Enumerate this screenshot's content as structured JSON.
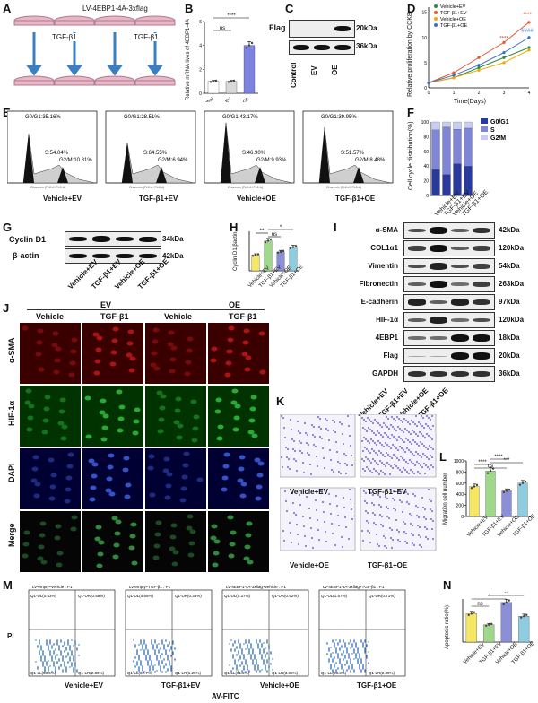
{
  "panelA": {
    "letter": "A",
    "title": "LV-4EBP1-4A-3xflag",
    "treat_left": "TGF-β1",
    "treat_right": "TGF-β1"
  },
  "panelB": {
    "letter": "B",
    "ylabel": "Relative mRNA lives of 4EBP1-4A",
    "ns": "ns",
    "sig": "****",
    "ticks": [
      "0",
      "2",
      "4",
      "6"
    ]
  },
  "panelC": {
    "letter": "C",
    "row_label": "Flag",
    "kda": [
      "20kDa",
      "36kDa"
    ],
    "lanes": [
      "Control",
      "EV",
      "OE"
    ]
  },
  "panelD": {
    "letter": "D",
    "ylabel": "Relative proliferation by CCK8",
    "xlabel": "Time(Days)",
    "sig": [
      "****",
      "****",
      "####"
    ]
  },
  "panelE": {
    "letter": "E",
    "xaxis": "Channels (FL2-A+FL2-A)",
    "plots": [
      {
        "g0": "G0/G1:35.16%",
        "s": "S:54.04%",
        "g2": "G2/M:10.81%",
        "label": "Vehicle+EV"
      },
      {
        "g0": "G0/G1:28.51%",
        "s": "S:64.55%",
        "g2": "G2/M:6.94%",
        "label": "TGF-β1+EV"
      },
      {
        "g0": "G0/G1:43.17%",
        "s": "S:46.90%",
        "g2": "G2/M:9.93%",
        "label": "Vehicle+OE"
      },
      {
        "g0": "G0/G1:39.95%",
        "s": "S:51.57%",
        "g2": "G2/M:8.48%",
        "label": "TGF-β1+OE"
      }
    ]
  },
  "panelF": {
    "letter": "F",
    "ylabel": "Cell cycle distribution(%)",
    "legend": [
      "G0/G1",
      "S",
      "G2/M"
    ],
    "ticks": [
      "0",
      "20",
      "40",
      "60",
      "80",
      "100"
    ],
    "lanes": [
      "Vehicle+EV",
      "TGF-β1+EV",
      "Vehicle+OE",
      "TGF-β1+OE"
    ],
    "colors": {
      "g0": "#2a3a9c",
      "s": "#7f86d6",
      "g2": "#c9cdf0"
    }
  },
  "panelG": {
    "letter": "G",
    "rows": [
      "Cyclin D1",
      "β-actin"
    ],
    "kda": [
      "34kDa",
      "42kDa"
    ],
    "lanes": [
      "Vehicle+EV",
      "TGF-β1+EV",
      "Vehicle+OE",
      "TGF-β1+OE"
    ]
  },
  "panelH": {
    "letter": "H",
    "ylabel": "Cyclin D1/βactin",
    "sig": [
      "**",
      "ns",
      "*"
    ],
    "lanes": [
      "Vehicle+EV",
      "TGF-β1+EV",
      "Vehicle+OE",
      "TGF-β1+OE"
    ]
  },
  "panelI": {
    "letter": "I",
    "rows": [
      "α-SMA",
      "COL1α1",
      "Vimentin",
      "Fibronectin",
      "E-cadherin",
      "HIF-1α",
      "4EBP1",
      "Flag",
      "GAPDH"
    ],
    "kda": [
      "42kDa",
      "120kDa",
      "54kDa",
      "263kDa",
      "97kDa",
      "120kDa",
      "18kDa",
      "20kDa",
      "36kDa"
    ]
  },
  "panelJ": {
    "letter": "J",
    "groups": [
      "EV",
      "OE"
    ],
    "cols": [
      "Vehicle",
      "TGF-β1",
      "Vehicle",
      "TGF-β1"
    ],
    "rows": [
      "α-SMA",
      "HIF-1α",
      "DAPI",
      "Merge"
    ]
  },
  "panelK": {
    "letter": "K",
    "lanes": [
      "Vehicle+EV",
      "TGF-β1+EV",
      "Vehicle+OE",
      "TGF-β1+OE"
    ],
    "captions": [
      "Vehicle+EV",
      "TGF-β1+EV",
      "Vehicle+OE",
      "TGF-β1+OE"
    ]
  },
  "panelL": {
    "letter": "L",
    "ylabel": "Migration cell number",
    "ticks": [
      "0",
      "200",
      "400",
      "600",
      "800",
      "1000"
    ],
    "sig": [
      "****",
      "****",
      "ns",
      "***"
    ],
    "lanes": [
      "Vehicle+EV",
      "TGF-β1+EV",
      "Vehicle+OE",
      "TGF-β1+OE"
    ]
  },
  "panelM": {
    "letter": "M",
    "yaxis": "PI",
    "xaxis": "AV-FITC",
    "plots": [
      {
        "title": "LV-empty+vehicle : P1",
        "ul": "Q1-UL(0.63%)",
        "ur": "Q1-UR(0.58%)",
        "ll": "Q1-LL(93.5%)",
        "lr": "Q1-LR(2.80%)",
        "label": "Vehicle+EV"
      },
      {
        "title": "LV-empty+TGF-β1 : P1",
        "ul": "Q1-UL(0.65%)",
        "ur": "Q1-UR(0.38%)",
        "ll": "Q1-LL(92.7%)",
        "lr": "Q1-LR(1.26%)",
        "label": "TGF-β1+EV"
      },
      {
        "title": "LV-4EBP1-4A-3xflag+vehicle : P1",
        "ul": "Q1-UL(0.37%)",
        "ur": "Q1-UR(0.52%)",
        "ll": "Q1-LL(91.2%)",
        "lr": "Q1-LR(3.86%)",
        "label": "Vehicle+OE"
      },
      {
        "title": "LV-4EBP1-4A-3xflag+TGF-β1 : P1",
        "ul": "Q1-UL(1.57%)",
        "ur": "Q1-UR(0.71%)",
        "ll": "Q1-LL(93.3%)",
        "lr": "Q1-LR(2.39%)",
        "label": "TGF-β1+OE"
      }
    ]
  },
  "panelN": {
    "letter": "N",
    "ylabel": "Apoptosis ratio(%)",
    "sig": [
      "*",
      "ns",
      "**"
    ],
    "lanes": [
      "Vehicle+EV",
      "TGF-β1+EV",
      "Vehicle+OE",
      "TGF-β1+OE"
    ]
  },
  "chart_data": [
    {
      "id": "B",
      "type": "bar",
      "categories": [
        "Control",
        "EV",
        "OE"
      ],
      "values": [
        1.0,
        1.0,
        4.0
      ],
      "ylim": [
        0,
        6
      ],
      "ylabel": "Relative mRNA lives of 4EBP1-4A"
    },
    {
      "id": "D",
      "type": "line",
      "x": [
        0,
        1,
        2,
        3,
        4
      ],
      "xlabel": "Time(Days)",
      "ylabel": "Relative proliferation by CCK8",
      "ylim": [
        0,
        16
      ],
      "series": [
        {
          "name": "Vehicle+EV",
          "values": [
            1,
            2,
            4,
            6,
            8
          ]
        },
        {
          "name": "TGF-β1+EV",
          "values": [
            1,
            3,
            6,
            9,
            13
          ]
        },
        {
          "name": "Vehicle+OE",
          "values": [
            1,
            2,
            3.5,
            5,
            7.5
          ]
        },
        {
          "name": "TGF-β1+OE",
          "values": [
            1,
            2.5,
            4.5,
            7,
            10
          ]
        }
      ]
    },
    {
      "id": "F",
      "type": "bar",
      "stacked": true,
      "categories": [
        "Vehicle+EV",
        "TGF-β1+EV",
        "Vehicle+OE",
        "TGF-β1+OE"
      ],
      "ylim": [
        0,
        100
      ],
      "series": [
        {
          "name": "G0/G1",
          "values": [
            35.16,
            28.51,
            43.17,
            39.95
          ]
        },
        {
          "name": "S",
          "values": [
            54.04,
            64.55,
            46.9,
            51.57
          ]
        },
        {
          "name": "G2/M",
          "values": [
            10.81,
            6.94,
            9.93,
            8.48
          ]
        }
      ]
    },
    {
      "id": "H",
      "type": "bar",
      "categories": [
        "Vehicle+EV",
        "TGF-β1+EV",
        "Vehicle+OE",
        "TGF-β1+OE"
      ],
      "values": [
        1.0,
        1.9,
        1.2,
        1.5
      ],
      "ylim": [
        0,
        2.5
      ],
      "ylabel": "Cyclin D1/βactin"
    },
    {
      "id": "L",
      "type": "bar",
      "categories": [
        "Vehicle+EV",
        "TGF-β1+EV",
        "Vehicle+OE",
        "TGF-β1+OE"
      ],
      "values": [
        540,
        820,
        460,
        600
      ],
      "ylim": [
        0,
        1000
      ],
      "ylabel": "Migration cell number"
    },
    {
      "id": "N",
      "type": "bar",
      "categories": [
        "Vehicle+EV",
        "TGF-β1+EV",
        "Vehicle+OE",
        "TGF-β1+OE"
      ],
      "values": [
        3.3,
        2.0,
        4.6,
        3.0
      ],
      "ylim": [
        0,
        5
      ],
      "ylabel": "Apoptosis ratio(%)"
    }
  ]
}
